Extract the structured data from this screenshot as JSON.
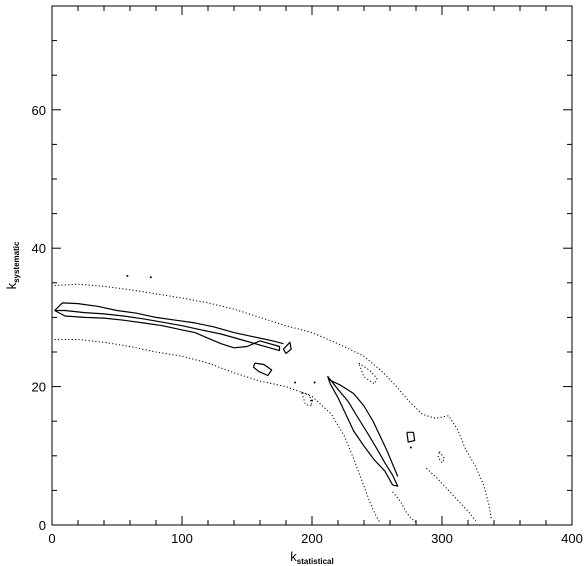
{
  "chart_data": {
    "type": "line",
    "title": "",
    "xlabel": {
      "main": "k",
      "sub": "statistical"
    },
    "ylabel": {
      "main": "k",
      "sub": "systematic"
    },
    "xlim": [
      0,
      400
    ],
    "ylim": [
      0,
      75
    ],
    "x_ticks": [
      0,
      100,
      200,
      300,
      400
    ],
    "y_ticks": [
      0,
      20,
      40,
      60
    ],
    "grid": false,
    "legend": "none",
    "series": [
      {
        "style": "solid",
        "points": [
          [
            2,
            31
          ],
          [
            10,
            31
          ],
          [
            25,
            30.7
          ],
          [
            40,
            30.5
          ],
          [
            55,
            30.2
          ],
          [
            70,
            29.8
          ],
          [
            85,
            29.3
          ],
          [
            100,
            28.8
          ],
          [
            115,
            28.2
          ],
          [
            130,
            27.6
          ],
          [
            145,
            26.8
          ],
          [
            160,
            26.0
          ],
          [
            175,
            25.2
          ],
          [
            175,
            25.8
          ],
          [
            160,
            26.6
          ],
          [
            150,
            25.8
          ],
          [
            140,
            25.6
          ],
          [
            130,
            26.2
          ],
          [
            120,
            27.0
          ],
          [
            110,
            27.8
          ],
          [
            100,
            28.2
          ],
          [
            85,
            28.8
          ],
          [
            70,
            29.2
          ],
          [
            55,
            29.6
          ],
          [
            40,
            29.9
          ],
          [
            25,
            30.0
          ],
          [
            10,
            30.2
          ],
          [
            2,
            31
          ]
        ]
      },
      {
        "style": "solid",
        "points": [
          [
            2,
            31
          ],
          [
            8,
            32.1
          ],
          [
            20,
            32.0
          ],
          [
            35,
            31.6
          ],
          [
            50,
            31.0
          ],
          [
            65,
            30.6
          ],
          [
            80,
            30.0
          ],
          [
            95,
            29.6
          ],
          [
            110,
            29.2
          ],
          [
            125,
            28.6
          ],
          [
            140,
            27.8
          ],
          [
            155,
            27.2
          ],
          [
            170,
            26.6
          ],
          [
            178,
            26.2
          ]
        ]
      },
      {
        "style": "solid",
        "points": [
          [
            212,
            21.5
          ],
          [
            220,
            19.6
          ],
          [
            228,
            17.8
          ],
          [
            235,
            15.6
          ],
          [
            243,
            13.2
          ],
          [
            250,
            11.0
          ],
          [
            256,
            9.0
          ],
          [
            262,
            7.2
          ],
          [
            266,
            5.6
          ],
          [
            262,
            5.8
          ],
          [
            256,
            7.8
          ],
          [
            248,
            9.4
          ],
          [
            240,
            11.4
          ],
          [
            232,
            13.6
          ],
          [
            226,
            16.0
          ],
          [
            220,
            18.4
          ],
          [
            214,
            20.4
          ],
          [
            212,
            21.5
          ]
        ]
      },
      {
        "style": "solid",
        "points": [
          [
            213,
            21.0
          ],
          [
            222,
            20.2
          ],
          [
            232,
            19.0
          ],
          [
            240,
            17.2
          ],
          [
            247,
            15.0
          ],
          [
            253,
            12.6
          ],
          [
            258,
            10.6
          ],
          [
            262,
            8.8
          ],
          [
            266,
            7.0
          ]
        ]
      },
      {
        "style": "solid",
        "points": [
          [
            156,
            23.4
          ],
          [
            163,
            23.2
          ],
          [
            169,
            22.4
          ],
          [
            166,
            21.6
          ],
          [
            159,
            22.2
          ],
          [
            155,
            22.8
          ],
          [
            156,
            23.4
          ]
        ]
      },
      {
        "style": "solid",
        "points": [
          [
            178,
            25.4
          ],
          [
            183,
            26.4
          ],
          [
            184,
            25.4
          ],
          [
            180,
            24.8
          ],
          [
            178,
            25.4
          ]
        ]
      },
      {
        "style": "solid",
        "points": [
          [
            273,
            13.4
          ],
          [
            278,
            13.4
          ],
          [
            279,
            12.2
          ],
          [
            274,
            12.0
          ],
          [
            273,
            13.4
          ]
        ]
      },
      {
        "style": "dotted",
        "points": [
          [
            2,
            34.6
          ],
          [
            20,
            34.8
          ],
          [
            40,
            34.5
          ],
          [
            60,
            34.0
          ],
          [
            80,
            33.4
          ],
          [
            100,
            32.8
          ],
          [
            120,
            32.1
          ],
          [
            140,
            31.2
          ],
          [
            160,
            30.0
          ],
          [
            180,
            28.8
          ],
          [
            200,
            27.8
          ],
          [
            220,
            26.2
          ],
          [
            240,
            24.4
          ],
          [
            255,
            22.0
          ],
          [
            265,
            20.0
          ],
          [
            275,
            17.8
          ],
          [
            285,
            16.0
          ],
          [
            295,
            15.4
          ],
          [
            305,
            15.8
          ],
          [
            312,
            13.8
          ],
          [
            318,
            11.0
          ],
          [
            326,
            8.4
          ],
          [
            332,
            5.8
          ],
          [
            336,
            3.0
          ],
          [
            338,
            0.8
          ]
        ]
      },
      {
        "style": "dotted",
        "points": [
          [
            2,
            26.8
          ],
          [
            20,
            26.8
          ],
          [
            40,
            26.4
          ],
          [
            60,
            25.8
          ],
          [
            80,
            25.0
          ],
          [
            100,
            24.4
          ],
          [
            120,
            23.4
          ],
          [
            140,
            22.0
          ],
          [
            160,
            20.8
          ],
          [
            180,
            20.0
          ],
          [
            200,
            18.6
          ],
          [
            215,
            16.0
          ],
          [
            225,
            12.8
          ],
          [
            232,
            9.6
          ],
          [
            238,
            6.6
          ],
          [
            244,
            3.6
          ],
          [
            248,
            1.8
          ],
          [
            252,
            0.4
          ]
        ]
      },
      {
        "style": "dotted",
        "points": [
          [
            262,
            4.8
          ],
          [
            268,
            3.4
          ],
          [
            272,
            2.0
          ],
          [
            276,
            1.0
          ],
          [
            280,
            0.4
          ]
        ]
      },
      {
        "style": "dotted",
        "points": [
          [
            288,
            8.2
          ],
          [
            296,
            6.8
          ],
          [
            304,
            5.2
          ],
          [
            312,
            3.6
          ],
          [
            320,
            2.0
          ],
          [
            326,
            0.6
          ]
        ]
      },
      {
        "style": "dotted",
        "points": [
          [
            236,
            23.4
          ],
          [
            244,
            22.4
          ],
          [
            250,
            21.2
          ],
          [
            248,
            20.4
          ],
          [
            240,
            21.4
          ],
          [
            236,
            23.4
          ]
        ]
      },
      {
        "style": "dotted",
        "points": [
          [
            298,
            10.6
          ],
          [
            302,
            9.6
          ],
          [
            300,
            9.0
          ],
          [
            297,
            9.8
          ],
          [
            298,
            10.6
          ]
        ]
      },
      {
        "style": "dotted",
        "points": [
          [
            192,
            19.2
          ],
          [
            198,
            18.8
          ],
          [
            200,
            17.2
          ],
          [
            195,
            17.4
          ],
          [
            192,
            19.2
          ]
        ]
      }
    ],
    "dots": [
      [
        58,
        36.0
      ],
      [
        76,
        35.8
      ],
      [
        187,
        20.6
      ],
      [
        202,
        20.6
      ],
      [
        200,
        18.0
      ],
      [
        276,
        11.2
      ]
    ]
  }
}
